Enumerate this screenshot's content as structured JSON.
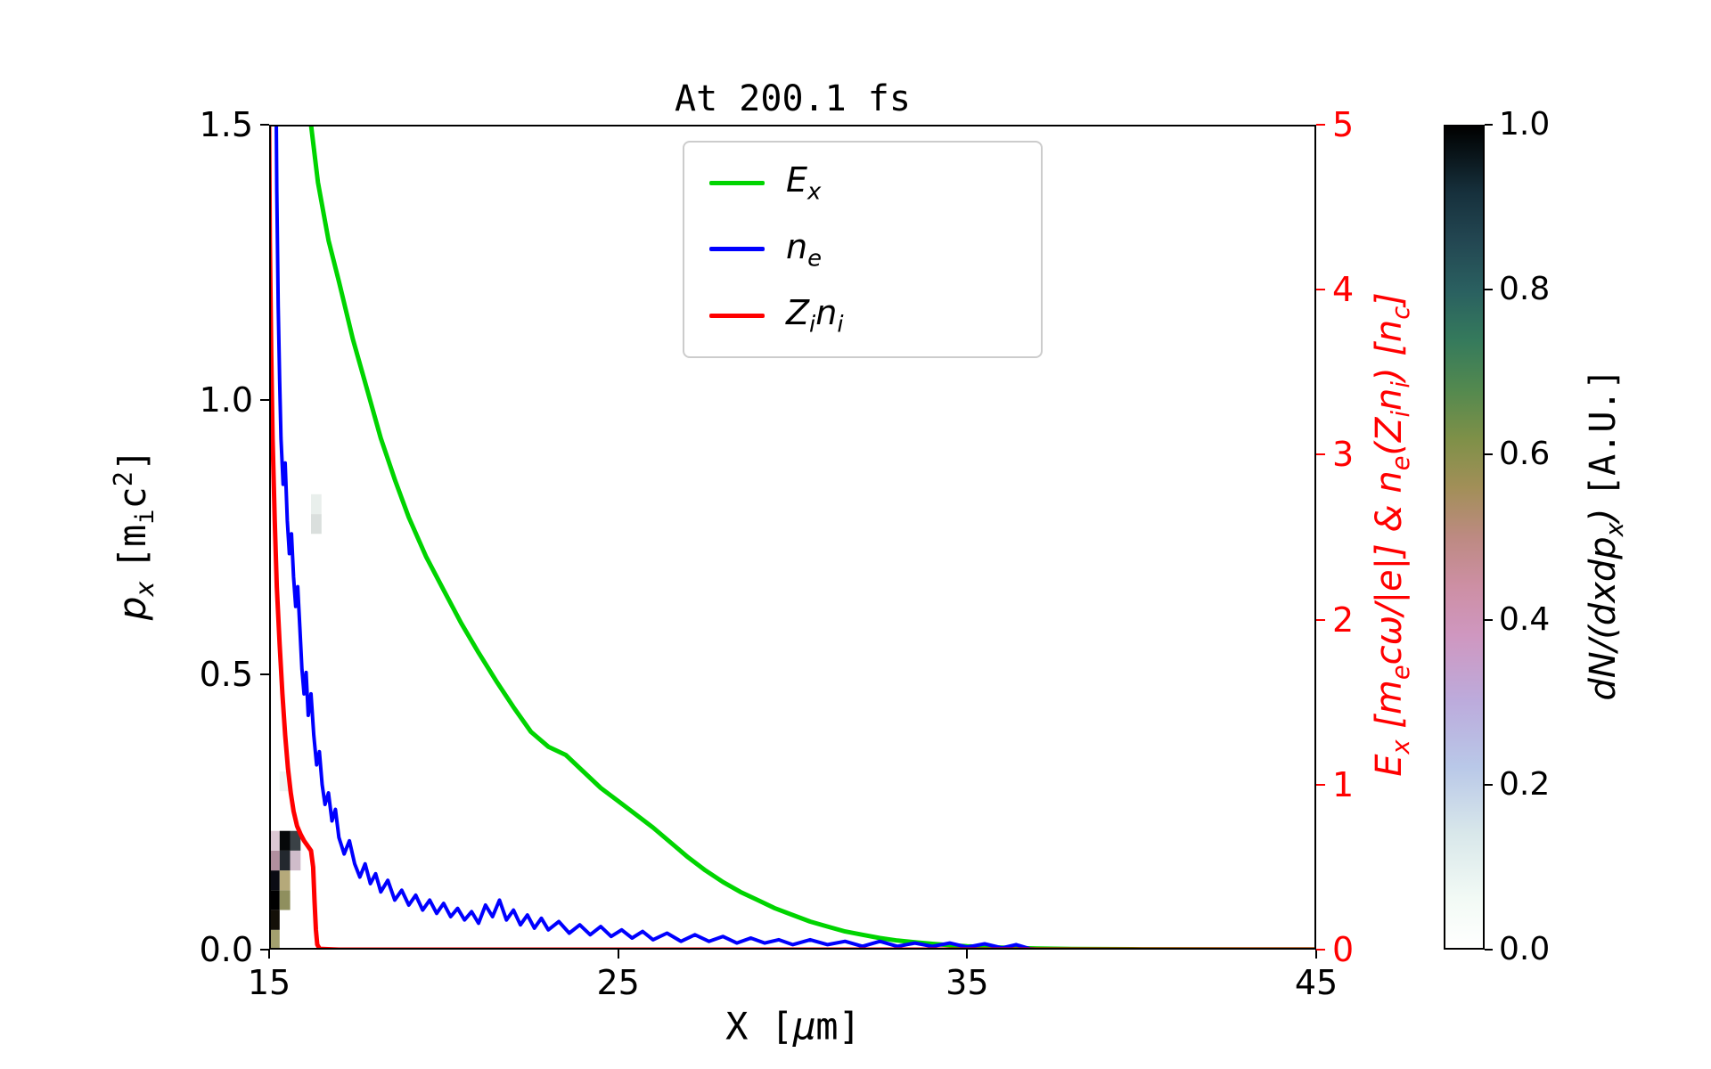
{
  "figure": {
    "background": "#ffffff"
  },
  "chart_data": {
    "type": "line",
    "title": "At 200.1 fs",
    "xlabel_html": "X [<i>μ</i>m]",
    "ylabel_left_html": "<i>p<sub>x</sub></i> <span class='mono'>[m<sub>i</sub>c<sup>2</sup>]</span>",
    "ylabel_right_html": "E<sub>x</sub> [m<sub>e</sub>cω/|e|] &amp; n<sub>e</sub>(Z<sub>i</sub>n<sub>i</sub>) [n<sub>c</sub>]",
    "xlim": [
      15,
      45
    ],
    "ylim_left": [
      0.0,
      1.5
    ],
    "ylim_right": [
      0,
      5
    ],
    "right_axis_color": "#ff0000",
    "x_ticks": [
      {
        "v": 15,
        "label": "15"
      },
      {
        "v": 25,
        "label": "25"
      },
      {
        "v": 35,
        "label": "35"
      },
      {
        "v": 45,
        "label": "45"
      }
    ],
    "y_ticks_left": [
      {
        "v": 0.0,
        "label": "0.0"
      },
      {
        "v": 0.5,
        "label": "0.5"
      },
      {
        "v": 1.0,
        "label": "1.0"
      },
      {
        "v": 1.5,
        "label": "1.5"
      }
    ],
    "y_ticks_right": [
      {
        "v": 0,
        "label": "0"
      },
      {
        "v": 1,
        "label": "1"
      },
      {
        "v": 2,
        "label": "2"
      },
      {
        "v": 3,
        "label": "3"
      },
      {
        "v": 4,
        "label": "4"
      },
      {
        "v": 5,
        "label": "5"
      }
    ],
    "legend": {
      "entries": [
        {
          "label_html": "<i>E<sub>x</sub></i>"
        },
        {
          "label_html": "<i>n<sub>e</sub></i>"
        },
        {
          "label_html": "<i>Z<sub>i</sub>n<sub>i</sub></i>"
        }
      ]
    },
    "series": [
      {
        "id": "Ex",
        "name": "E_x",
        "color": "#00d400",
        "width": 5,
        "axis": "right",
        "points": [
          [
            16.0,
            5.6
          ],
          [
            16.2,
            5.0
          ],
          [
            16.4,
            4.65
          ],
          [
            16.7,
            4.3
          ],
          [
            17.0,
            4.05
          ],
          [
            17.4,
            3.7
          ],
          [
            17.8,
            3.4
          ],
          [
            18.2,
            3.1
          ],
          [
            18.6,
            2.85
          ],
          [
            19.0,
            2.62
          ],
          [
            19.5,
            2.38
          ],
          [
            20.0,
            2.18
          ],
          [
            20.5,
            1.98
          ],
          [
            21.0,
            1.8
          ],
          [
            21.5,
            1.63
          ],
          [
            22.0,
            1.47
          ],
          [
            22.5,
            1.32
          ],
          [
            23.0,
            1.23
          ],
          [
            23.5,
            1.18
          ],
          [
            24.0,
            1.08
          ],
          [
            24.5,
            0.98
          ],
          [
            25.0,
            0.9
          ],
          [
            25.5,
            0.82
          ],
          [
            26.0,
            0.74
          ],
          [
            26.5,
            0.65
          ],
          [
            27.0,
            0.56
          ],
          [
            27.5,
            0.48
          ],
          [
            28.0,
            0.41
          ],
          [
            28.5,
            0.35
          ],
          [
            29.0,
            0.3
          ],
          [
            29.5,
            0.25
          ],
          [
            30.0,
            0.21
          ],
          [
            30.5,
            0.17
          ],
          [
            31.0,
            0.14
          ],
          [
            31.5,
            0.11
          ],
          [
            32.0,
            0.09
          ],
          [
            32.5,
            0.07
          ],
          [
            33.0,
            0.055
          ],
          [
            33.5,
            0.045
          ],
          [
            34.0,
            0.035
          ],
          [
            34.5,
            0.027
          ],
          [
            35.0,
            0.02
          ],
          [
            36.0,
            0.012
          ],
          [
            37.0,
            0.007
          ],
          [
            38.0,
            0.004
          ],
          [
            40.0,
            0.002
          ],
          [
            45.0,
            0.001
          ]
        ]
      },
      {
        "id": "ne",
        "name": "n_e",
        "color": "#0000ff",
        "width": 4,
        "axis": "right",
        "points": [
          [
            15.18,
            5.8
          ],
          [
            15.22,
            4.6
          ],
          [
            15.26,
            3.9
          ],
          [
            15.3,
            3.45
          ],
          [
            15.34,
            3.1
          ],
          [
            15.4,
            2.82
          ],
          [
            15.46,
            2.95
          ],
          [
            15.52,
            2.6
          ],
          [
            15.58,
            2.4
          ],
          [
            15.64,
            2.52
          ],
          [
            15.7,
            2.26
          ],
          [
            15.76,
            2.08
          ],
          [
            15.82,
            2.2
          ],
          [
            15.88,
            1.95
          ],
          [
            15.94,
            1.7
          ],
          [
            16.0,
            1.55
          ],
          [
            16.06,
            1.68
          ],
          [
            16.12,
            1.42
          ],
          [
            16.2,
            1.55
          ],
          [
            16.28,
            1.3
          ],
          [
            16.36,
            1.12
          ],
          [
            16.44,
            1.2
          ],
          [
            16.52,
            1.0
          ],
          [
            16.6,
            0.88
          ],
          [
            16.7,
            0.95
          ],
          [
            16.8,
            0.78
          ],
          [
            16.9,
            0.85
          ],
          [
            17.0,
            0.68
          ],
          [
            17.15,
            0.58
          ],
          [
            17.3,
            0.66
          ],
          [
            17.45,
            0.52
          ],
          [
            17.6,
            0.44
          ],
          [
            17.75,
            0.52
          ],
          [
            17.9,
            0.4
          ],
          [
            18.05,
            0.46
          ],
          [
            18.2,
            0.35
          ],
          [
            18.4,
            0.42
          ],
          [
            18.6,
            0.3
          ],
          [
            18.8,
            0.36
          ],
          [
            19.0,
            0.27
          ],
          [
            19.2,
            0.33
          ],
          [
            19.4,
            0.24
          ],
          [
            19.6,
            0.3
          ],
          [
            19.8,
            0.22
          ],
          [
            20.0,
            0.28
          ],
          [
            20.2,
            0.2
          ],
          [
            20.4,
            0.25
          ],
          [
            20.6,
            0.18
          ],
          [
            20.8,
            0.23
          ],
          [
            21.0,
            0.16
          ],
          [
            21.2,
            0.27
          ],
          [
            21.4,
            0.2
          ],
          [
            21.6,
            0.3
          ],
          [
            21.8,
            0.18
          ],
          [
            22.0,
            0.24
          ],
          [
            22.2,
            0.15
          ],
          [
            22.4,
            0.21
          ],
          [
            22.6,
            0.13
          ],
          [
            22.8,
            0.19
          ],
          [
            23.0,
            0.12
          ],
          [
            23.3,
            0.17
          ],
          [
            23.6,
            0.1
          ],
          [
            23.9,
            0.15
          ],
          [
            24.2,
            0.09
          ],
          [
            24.5,
            0.14
          ],
          [
            24.8,
            0.08
          ],
          [
            25.1,
            0.12
          ],
          [
            25.4,
            0.07
          ],
          [
            25.7,
            0.11
          ],
          [
            26.0,
            0.06
          ],
          [
            26.4,
            0.1
          ],
          [
            26.8,
            0.05
          ],
          [
            27.2,
            0.09
          ],
          [
            27.6,
            0.05
          ],
          [
            28.0,
            0.08
          ],
          [
            28.4,
            0.04
          ],
          [
            28.8,
            0.07
          ],
          [
            29.2,
            0.04
          ],
          [
            29.6,
            0.06
          ],
          [
            30.0,
            0.03
          ],
          [
            30.5,
            0.06
          ],
          [
            31.0,
            0.03
          ],
          [
            31.5,
            0.05
          ],
          [
            32.0,
            0.02
          ],
          [
            32.5,
            0.05
          ],
          [
            33.0,
            0.02
          ],
          [
            33.5,
            0.04
          ],
          [
            34.0,
            0.02
          ],
          [
            34.5,
            0.04
          ],
          [
            35.0,
            0.015
          ],
          [
            35.5,
            0.035
          ],
          [
            36.0,
            0.01
          ],
          [
            36.4,
            0.03
          ],
          [
            36.8,
            0.005
          ],
          [
            37.2,
            0.0
          ],
          [
            45.0,
            0.0
          ]
        ]
      },
      {
        "id": "Zini",
        "name": "Z_i n_i",
        "color": "#ff0000",
        "width": 5,
        "axis": "right",
        "points": [
          [
            14.98,
            5.8
          ],
          [
            15.0,
            5.0
          ],
          [
            15.02,
            4.3
          ],
          [
            15.06,
            3.6
          ],
          [
            15.1,
            3.1
          ],
          [
            15.16,
            2.6
          ],
          [
            15.22,
            2.2
          ],
          [
            15.3,
            1.85
          ],
          [
            15.38,
            1.55
          ],
          [
            15.46,
            1.3
          ],
          [
            15.54,
            1.1
          ],
          [
            15.62,
            0.95
          ],
          [
            15.7,
            0.84
          ],
          [
            15.8,
            0.75
          ],
          [
            15.9,
            0.7
          ],
          [
            16.0,
            0.66
          ],
          [
            16.1,
            0.63
          ],
          [
            16.2,
            0.6
          ],
          [
            16.26,
            0.5
          ],
          [
            16.3,
            0.3
          ],
          [
            16.34,
            0.12
          ],
          [
            16.38,
            0.03
          ],
          [
            16.45,
            0.005
          ],
          [
            17.0,
            0.0
          ],
          [
            45.0,
            0.0
          ]
        ]
      }
    ],
    "histogram": {
      "axis": "left",
      "quantity": "dN/(dxdp_x)",
      "cells": [
        {
          "x": 15.0,
          "dx": 0.3,
          "px": 0.0,
          "dpx": 0.036,
          "color": "#a3a06e"
        },
        {
          "x": 15.0,
          "dx": 0.3,
          "px": 0.036,
          "dpx": 0.036,
          "color": "#141008"
        },
        {
          "x": 15.0,
          "dx": 0.3,
          "px": 0.072,
          "dpx": 0.036,
          "color": "#000000"
        },
        {
          "x": 15.0,
          "dx": 0.3,
          "px": 0.108,
          "dpx": 0.036,
          "color": "#0b0c14"
        },
        {
          "x": 15.0,
          "dx": 0.3,
          "px": 0.144,
          "dpx": 0.036,
          "color": "#b18f9e"
        },
        {
          "x": 15.0,
          "dx": 0.3,
          "px": 0.18,
          "dpx": 0.036,
          "color": "#dcc8d4"
        },
        {
          "x": 15.3,
          "dx": 0.3,
          "px": 0.072,
          "dpx": 0.036,
          "color": "#8f8f5e"
        },
        {
          "x": 15.3,
          "dx": 0.3,
          "px": 0.108,
          "dpx": 0.036,
          "color": "#b5a97a"
        },
        {
          "x": 15.3,
          "dx": 0.3,
          "px": 0.144,
          "dpx": 0.036,
          "color": "#23282e"
        },
        {
          "x": 15.3,
          "dx": 0.3,
          "px": 0.18,
          "dpx": 0.036,
          "color": "#060809"
        },
        {
          "x": 15.6,
          "dx": 0.3,
          "px": 0.18,
          "dpx": 0.036,
          "color": "#3a4146"
        },
        {
          "x": 15.6,
          "dx": 0.3,
          "px": 0.144,
          "dpx": 0.036,
          "color": "#cfbcca"
        },
        {
          "x": 15.3,
          "dx": 0.3,
          "px": 0.288,
          "dpx": 0.036,
          "color": "#eef4f2"
        },
        {
          "x": 16.2,
          "dx": 0.3,
          "px": 0.756,
          "dpx": 0.036,
          "color": "#dadfdd"
        },
        {
          "x": 16.2,
          "dx": 0.3,
          "px": 0.792,
          "dpx": 0.036,
          "color": "#e9efec"
        }
      ]
    },
    "colorbar": {
      "label_html": "dN/(dxdp<sub>x</sub>) <span class='mono'>[A.U.]</span>",
      "lim": [
        0.0,
        1.0
      ],
      "ticks": [
        {
          "v": 0.0,
          "label": "0.0"
        },
        {
          "v": 0.2,
          "label": "0.2"
        },
        {
          "v": 0.4,
          "label": "0.4"
        },
        {
          "v": 0.6,
          "label": "0.6"
        },
        {
          "v": 0.8,
          "label": "0.8"
        },
        {
          "v": 1.0,
          "label": "1.0"
        }
      ],
      "gradient_stops": [
        {
          "v": 0.0,
          "color": "#ffffff"
        },
        {
          "v": 0.06,
          "color": "#f2faf5"
        },
        {
          "v": 0.14,
          "color": "#d8e7ea"
        },
        {
          "v": 0.22,
          "color": "#b9c8e8"
        },
        {
          "v": 0.3,
          "color": "#bcabdc"
        },
        {
          "v": 0.38,
          "color": "#cf97c0"
        },
        {
          "v": 0.44,
          "color": "#cd8fa4"
        },
        {
          "v": 0.5,
          "color": "#bd8a82"
        },
        {
          "v": 0.56,
          "color": "#a28f58"
        },
        {
          "v": 0.62,
          "color": "#7e9048"
        },
        {
          "v": 0.68,
          "color": "#53894f"
        },
        {
          "v": 0.74,
          "color": "#357a5c"
        },
        {
          "v": 0.8,
          "color": "#2a6060"
        },
        {
          "v": 0.86,
          "color": "#234752"
        },
        {
          "v": 0.92,
          "color": "#16303c"
        },
        {
          "v": 1.0,
          "color": "#000000"
        }
      ]
    }
  }
}
